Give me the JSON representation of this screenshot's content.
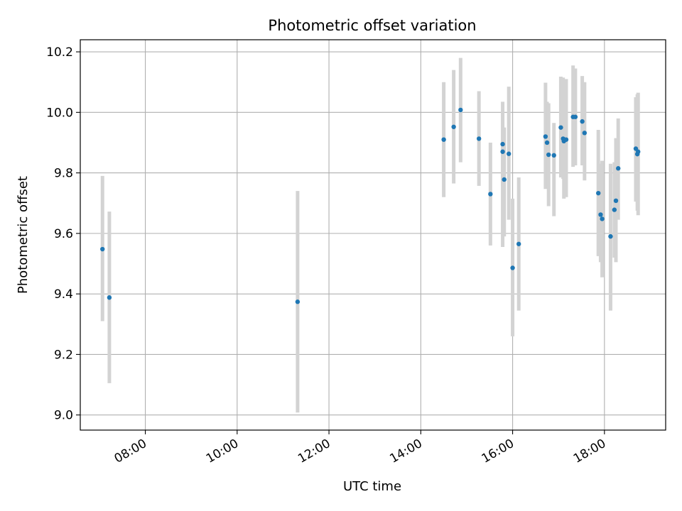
{
  "chart_data": {
    "type": "scatter",
    "title": "Photometric offset variation",
    "xlabel": "UTC time",
    "ylabel": "Photometric offset",
    "x_is_time": true,
    "xlim": [
      "06:35",
      "19:20"
    ],
    "ylim": [
      8.95,
      10.24
    ],
    "x_ticks": [
      "08:00",
      "10:00",
      "12:00",
      "14:00",
      "16:00",
      "18:00"
    ],
    "y_ticks": [
      "9.0",
      "9.2",
      "9.4",
      "9.6",
      "9.8",
      "10.0",
      "10.2"
    ],
    "grid": true,
    "colors": {
      "point": "#1f77b4",
      "errorbar": "#d3d3d3",
      "grid": "#b0b0b0",
      "axes": "#000000"
    },
    "series": [
      {
        "points": [
          {
            "x": "07:04",
            "y": 9.548,
            "lo": 9.31,
            "hi": 9.79
          },
          {
            "x": "07:13",
            "y": 9.388,
            "lo": 9.105,
            "hi": 9.672
          },
          {
            "x": "11:19",
            "y": 9.374,
            "lo": 9.008,
            "hi": 9.74
          },
          {
            "x": "14:30",
            "y": 9.91,
            "lo": 9.72,
            "hi": 10.1
          },
          {
            "x": "14:43",
            "y": 9.952,
            "lo": 9.765,
            "hi": 10.14
          },
          {
            "x": "14:52",
            "y": 10.008,
            "lo": 9.835,
            "hi": 10.18
          },
          {
            "x": "15:16",
            "y": 9.913,
            "lo": 9.757,
            "hi": 10.07
          },
          {
            "x": "15:31",
            "y": 9.73,
            "lo": 9.56,
            "hi": 9.9
          },
          {
            "x": "15:47",
            "y": 9.895,
            "lo": 9.757,
            "hi": 10.035
          },
          {
            "x": "15:47",
            "y": 9.87,
            "lo": 9.555,
            "hi": 10.0
          },
          {
            "x": "15:49",
            "y": 9.778,
            "lo": 9.59,
            "hi": 9.95
          },
          {
            "x": "15:55",
            "y": 9.863,
            "lo": 9.645,
            "hi": 10.085
          },
          {
            "x": "16:00",
            "y": 9.486,
            "lo": 9.26,
            "hi": 9.715
          },
          {
            "x": "16:08",
            "y": 9.565,
            "lo": 9.345,
            "hi": 9.785
          },
          {
            "x": "16:43",
            "y": 9.92,
            "lo": 9.747,
            "hi": 10.098
          },
          {
            "x": "16:45",
            "y": 9.9,
            "lo": 9.775,
            "hi": 10.035
          },
          {
            "x": "16:47",
            "y": 9.86,
            "lo": 9.69,
            "hi": 10.03
          },
          {
            "x": "16:54",
            "y": 9.858,
            "lo": 9.657,
            "hi": 9.965
          },
          {
            "x": "17:03",
            "y": 9.95,
            "lo": 9.785,
            "hi": 10.118
          },
          {
            "x": "17:06",
            "y": 9.913,
            "lo": 9.78,
            "hi": 10.115
          },
          {
            "x": "17:07",
            "y": 9.905,
            "lo": 9.715,
            "hi": 10.095
          },
          {
            "x": "17:10",
            "y": 9.91,
            "lo": 9.72,
            "hi": 10.11
          },
          {
            "x": "17:19",
            "y": 9.985,
            "lo": 9.82,
            "hi": 10.155
          },
          {
            "x": "17:22",
            "y": 9.985,
            "lo": 9.825,
            "hi": 10.145
          },
          {
            "x": "17:31",
            "y": 9.97,
            "lo": 9.825,
            "hi": 10.12
          },
          {
            "x": "17:34",
            "y": 9.932,
            "lo": 9.775,
            "hi": 10.1
          },
          {
            "x": "17:52",
            "y": 9.733,
            "lo": 9.525,
            "hi": 9.942
          },
          {
            "x": "17:55",
            "y": 9.662,
            "lo": 9.505,
            "hi": 9.83
          },
          {
            "x": "17:57",
            "y": 9.648,
            "lo": 9.455,
            "hi": 9.84
          },
          {
            "x": "18:08",
            "y": 9.59,
            "lo": 9.345,
            "hi": 9.83
          },
          {
            "x": "18:13",
            "y": 9.678,
            "lo": 9.52,
            "hi": 9.835
          },
          {
            "x": "18:15",
            "y": 9.708,
            "lo": 9.505,
            "hi": 9.915
          },
          {
            "x": "18:18",
            "y": 9.815,
            "lo": 9.645,
            "hi": 9.98
          },
          {
            "x": "18:41",
            "y": 9.88,
            "lo": 9.705,
            "hi": 10.05
          },
          {
            "x": "18:43",
            "y": 9.862,
            "lo": 9.675,
            "hi": 10.06
          },
          {
            "x": "18:44",
            "y": 9.87,
            "lo": 9.66,
            "hi": 10.065
          }
        ]
      }
    ]
  }
}
